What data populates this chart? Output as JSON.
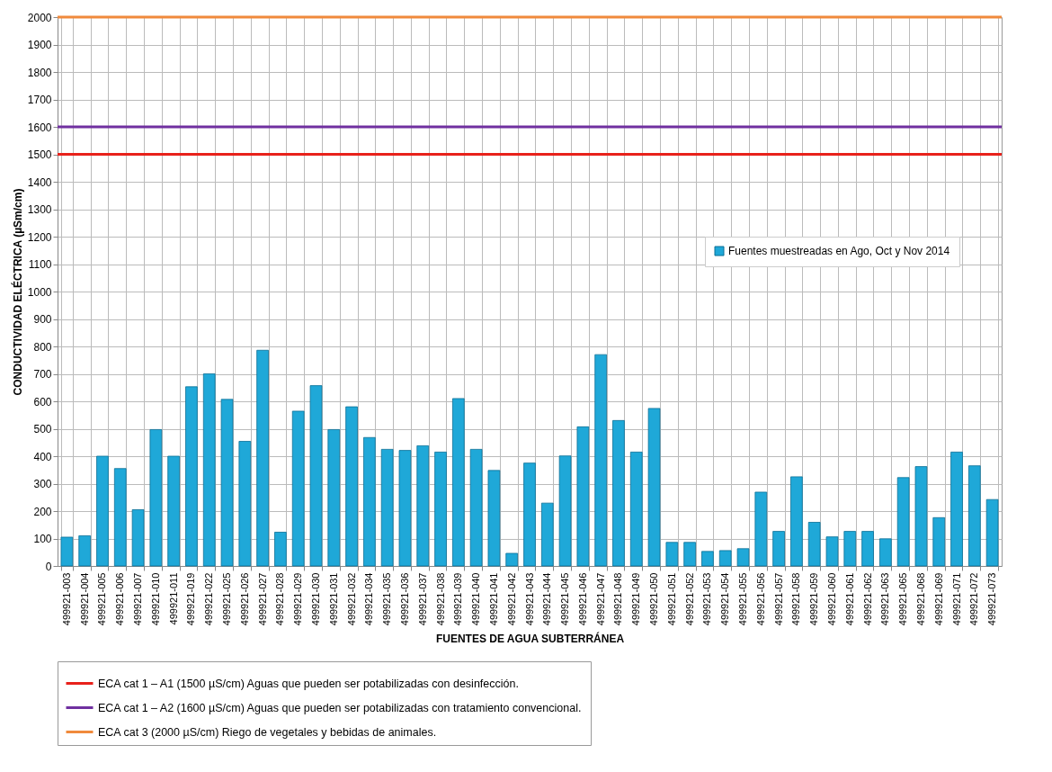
{
  "chart_data": {
    "type": "bar",
    "xlabel": "FUENTES DE AGUA SUBTERRÁNEA",
    "ylabel": "CONDUCTIVIDAD ELÉCTRICA (µSm/cm)",
    "categories": [
      "499921-003",
      "499921-004",
      "499921-005",
      "499921-006",
      "499921-007",
      "499921-010",
      "499921-011",
      "499921-019",
      "499921-022",
      "499921-025",
      "499921-026",
      "499921-027",
      "499921-028",
      "499921-029",
      "499921-030",
      "499921-031",
      "499921-032",
      "499921-034",
      "499921-035",
      "499921-036",
      "499921-037",
      "499921-038",
      "499921-039",
      "499921-040",
      "499921-041",
      "499921-042",
      "499921-043",
      "499921-044",
      "499921-045",
      "499921-046",
      "499921-047",
      "499921-048",
      "499921-049",
      "499921-050",
      "499921-051",
      "499921-052",
      "499921-053",
      "499921-054",
      "499921-055",
      "499921-056",
      "499921-057",
      "499921-058",
      "499921-059",
      "499921-060",
      "499921-061",
      "499921-062",
      "499921-063",
      "499921-065",
      "499921-068",
      "499921-069",
      "499921-071",
      "499921-072",
      "499921-073"
    ],
    "series": [
      {
        "name": "Fuentes muestreadas en Ago, Oct y Nov 2014",
        "color": "#1fa8d8",
        "values": [
          105,
          110,
          400,
          355,
          205,
          497,
          400,
          653,
          700,
          607,
          454,
          786,
          123,
          564,
          657,
          497,
          580,
          468,
          425,
          421,
          438,
          415,
          610,
          425,
          348,
          46,
          375,
          229,
          401,
          507,
          770,
          530,
          415,
          574,
          86,
          86,
          53,
          56,
          63,
          269,
          126,
          325,
          159,
          106,
          126,
          126,
          99,
          322,
          362,
          176,
          415,
          365,
          242
        ]
      }
    ],
    "ylim": [
      0,
      2000
    ],
    "yticks": [
      0,
      100,
      200,
      300,
      400,
      500,
      600,
      700,
      800,
      900,
      1000,
      1100,
      1200,
      1300,
      1400,
      1500,
      1600,
      1700,
      1800,
      1900,
      2000
    ],
    "grid": true,
    "legend": "right",
    "ref_lines": [
      {
        "axis": "y",
        "value": 1500,
        "label": "ECA cat 1 – A1 (1500 µS/cm) Aguas que pueden ser potabilizadas con desinfección.",
        "color": "#e8211b"
      },
      {
        "axis": "y",
        "value": 1600,
        "label": "ECA cat 1 – A2 (1600 µS/cm) Aguas que pueden ser potabilizadas con tratamiento convencional.",
        "color": "#7030a0"
      },
      {
        "axis": "y",
        "value": 2000,
        "label": "ECA cat 3 (2000 µS/cm) Riego de vegetales y bebidas de animales.",
        "color": "#f08a3c"
      }
    ]
  }
}
